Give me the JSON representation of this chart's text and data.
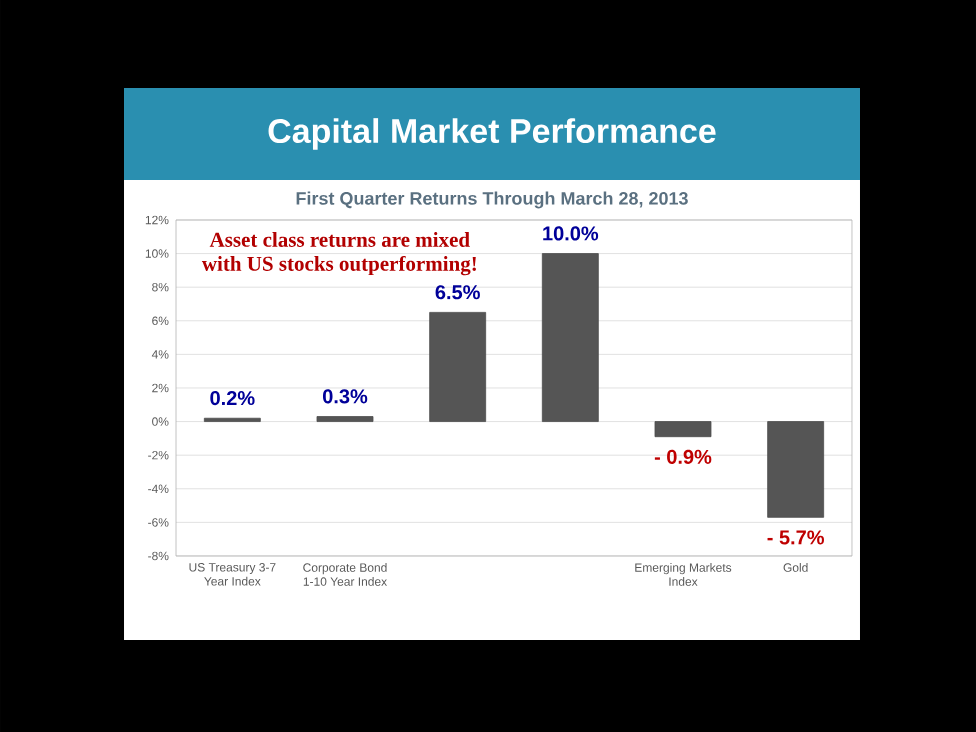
{
  "chart_data": {
    "type": "bar",
    "title": "Capital Market Performance",
    "subtitle": "First Quarter Returns Through March 28, 2013",
    "categories": [
      "US Treasury 3-7 Year Index",
      "Corporate Bond 1-10 Year Index",
      null,
      null,
      "Emerging Markets Index",
      "Gold"
    ],
    "values": [
      0.2,
      0.3,
      6.5,
      10.0,
      -0.9,
      -5.7
    ],
    "value_labels": [
      "0.2%",
      "0.3%",
      "6.5%",
      "10.0%",
      "- 0.9%",
      "- 5.7%"
    ],
    "color": "#555555",
    "ylim": [
      -8,
      12
    ],
    "yticks": [
      {
        "value": -8,
        "label": "-8%"
      },
      {
        "value": -6,
        "label": "-6%"
      },
      {
        "value": -4,
        "label": "-4%"
      },
      {
        "value": -2,
        "label": "-2%"
      },
      {
        "value": 0,
        "label": "0%"
      },
      {
        "value": 2,
        "label": "2%"
      },
      {
        "value": 4,
        "label": "4%"
      },
      {
        "value": 6,
        "label": "6%"
      },
      {
        "value": 8,
        "label": "8%"
      },
      {
        "value": 10,
        "label": "10%"
      },
      {
        "value": 12,
        "label": "12%"
      }
    ],
    "grid": "y",
    "annotations": [
      "Asset class returns are mixed with US stocks outperforming!"
    ]
  }
}
